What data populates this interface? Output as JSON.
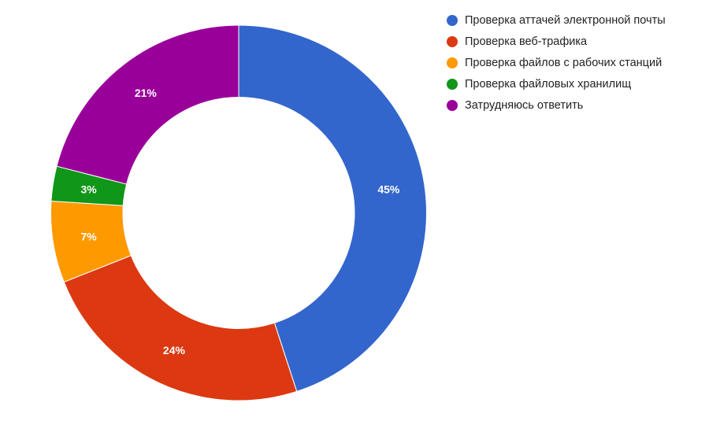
{
  "chart_data": {
    "type": "pie",
    "donut": true,
    "categories": [
      "Проверка аттачей электронной почты",
      "Проверка веб-трафика",
      "Проверка файлов с рабочих станций",
      "Проверка файловых хранилищ",
      "Затрудняюсь ответить"
    ],
    "values": [
      45,
      24,
      7,
      3,
      21
    ],
    "labels": [
      "45%",
      "24%",
      "7%",
      "3%",
      "21%"
    ],
    "colors": [
      "#3366cc",
      "#dc3912",
      "#ff9900",
      "#109618",
      "#990099"
    ],
    "legend_position": "right"
  }
}
